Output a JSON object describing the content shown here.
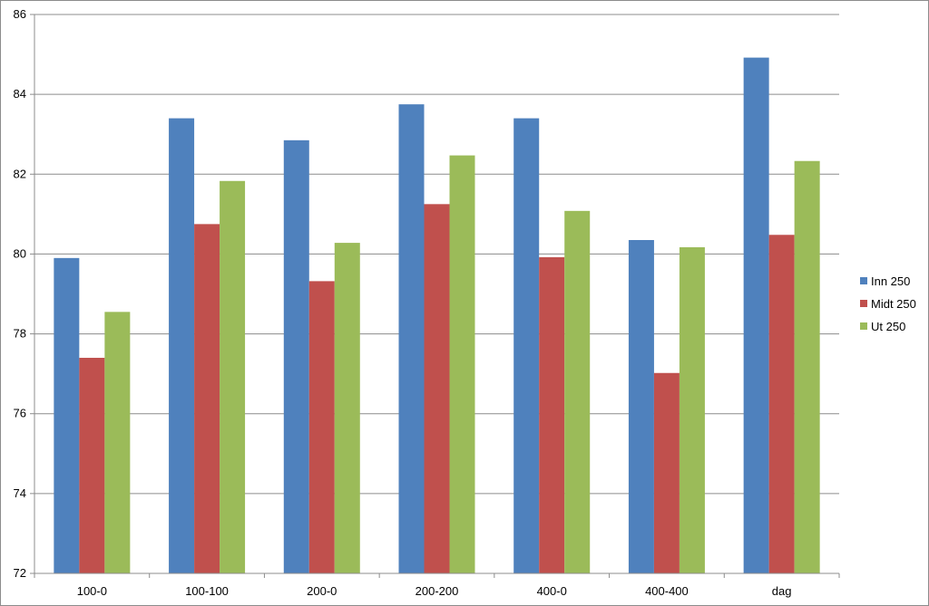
{
  "chart_data": {
    "type": "bar",
    "categories": [
      "100-0",
      "100-100",
      "200-0",
      "200-200",
      "400-0",
      "400-400",
      "dag"
    ],
    "series": [
      {
        "name": "Inn 250",
        "color": "#4f81bd",
        "values": [
          79.9,
          83.4,
          82.85,
          83.75,
          83.4,
          80.35,
          84.92
        ]
      },
      {
        "name": "Midt 250",
        "color": "#c0504d",
        "values": [
          77.4,
          80.75,
          79.32,
          81.25,
          79.92,
          77.02,
          80.48
        ]
      },
      {
        "name": "Ut 250",
        "color": "#9bbb59",
        "values": [
          78.55,
          81.83,
          80.28,
          82.47,
          81.08,
          80.17,
          82.33
        ]
      }
    ],
    "ylim": [
      72,
      86
    ],
    "yticks": [
      "72",
      "74",
      "76",
      "78",
      "80",
      "82",
      "84",
      "86"
    ],
    "grid": true,
    "legend_position": "right",
    "title": "",
    "xlabel": "",
    "ylabel": ""
  }
}
